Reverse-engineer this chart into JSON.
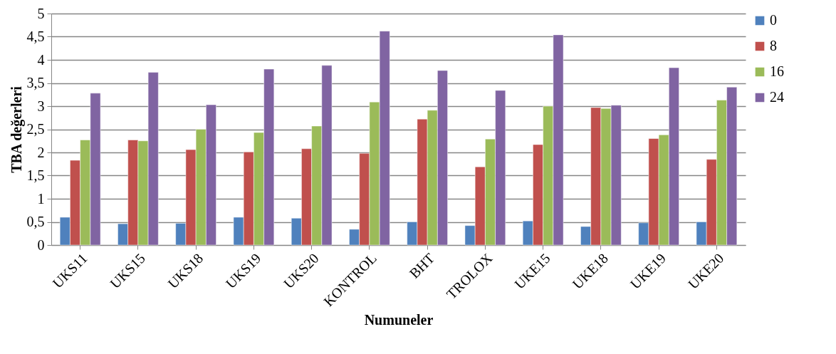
{
  "chart_data": {
    "type": "bar",
    "xlabel": "Numuneler",
    "ylabel": "TBA değerleri",
    "categories": [
      "UKS11",
      "UKS15",
      "UKS18",
      "UKS19",
      "UKS20",
      "KONTROL",
      "BHT",
      "TROLOX",
      "UKE15",
      "UKE18",
      "UKE19",
      "UKE20"
    ],
    "series": [
      {
        "name": "0",
        "color": "#4f81bd",
        "values": [
          0.6,
          0.46,
          0.47,
          0.6,
          0.58,
          0.34,
          0.5,
          0.42,
          0.52,
          0.4,
          0.48,
          0.5
        ]
      },
      {
        "name": "8",
        "color": "#c0504d",
        "values": [
          1.83,
          2.27,
          2.06,
          2.01,
          2.08,
          1.98,
          2.72,
          1.69,
          2.17,
          2.97,
          2.3,
          1.85
        ]
      },
      {
        "name": "16",
        "color": "#9bbb59",
        "values": [
          2.27,
          2.25,
          2.5,
          2.43,
          2.57,
          3.09,
          2.91,
          2.29,
          3.0,
          2.95,
          2.38,
          3.13
        ]
      },
      {
        "name": "24",
        "color": "#8064a2",
        "values": [
          3.28,
          3.73,
          3.03,
          3.8,
          3.88,
          4.62,
          3.77,
          3.34,
          4.54,
          3.02,
          3.83,
          3.41
        ]
      }
    ],
    "ylim": [
      0,
      5
    ],
    "yticks": [
      0,
      {
        "value": 0.5,
        "label": "0,5"
      },
      1,
      {
        "value": 1.5,
        "label": "1,5"
      },
      2,
      {
        "value": 2.5,
        "label": "2,5"
      },
      3,
      {
        "value": 3.5,
        "label": "3,5"
      },
      4,
      {
        "value": 4.5,
        "label": "4,5"
      },
      5
    ],
    "grid": "y",
    "legend": "right"
  }
}
